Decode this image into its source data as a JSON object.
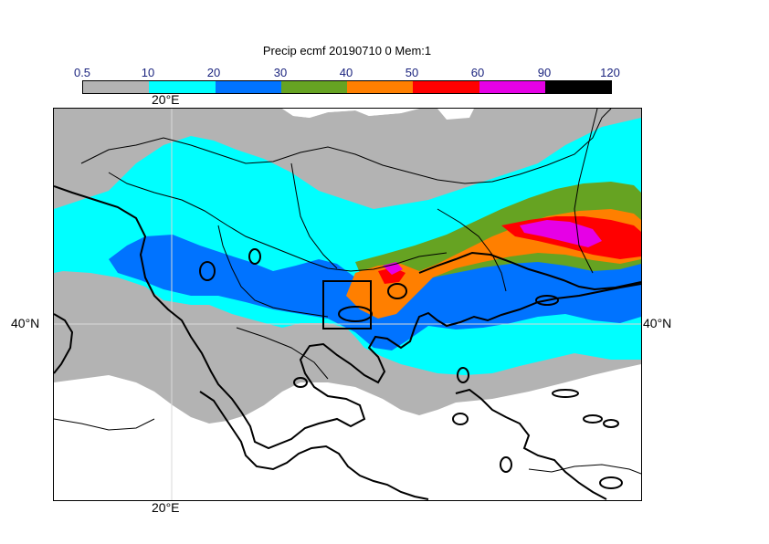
{
  "title": "Precip ecmf 20190710 0 Mem:1",
  "colorbar": {
    "ticks": [
      "0.5",
      "10",
      "20",
      "30",
      "40",
      "50",
      "60",
      "90",
      "120"
    ],
    "colors": [
      "#b3b3b3",
      "#00ffff",
      "#0073ff",
      "#66a322",
      "#ff7f00",
      "#ff0000",
      "#e600e6",
      "#000000"
    ]
  },
  "map": {
    "lon_label_top": "20°E",
    "lon_label_bottom": "20°E",
    "lat_label_left": "40°N",
    "lat_label_right": "40°N"
  }
}
